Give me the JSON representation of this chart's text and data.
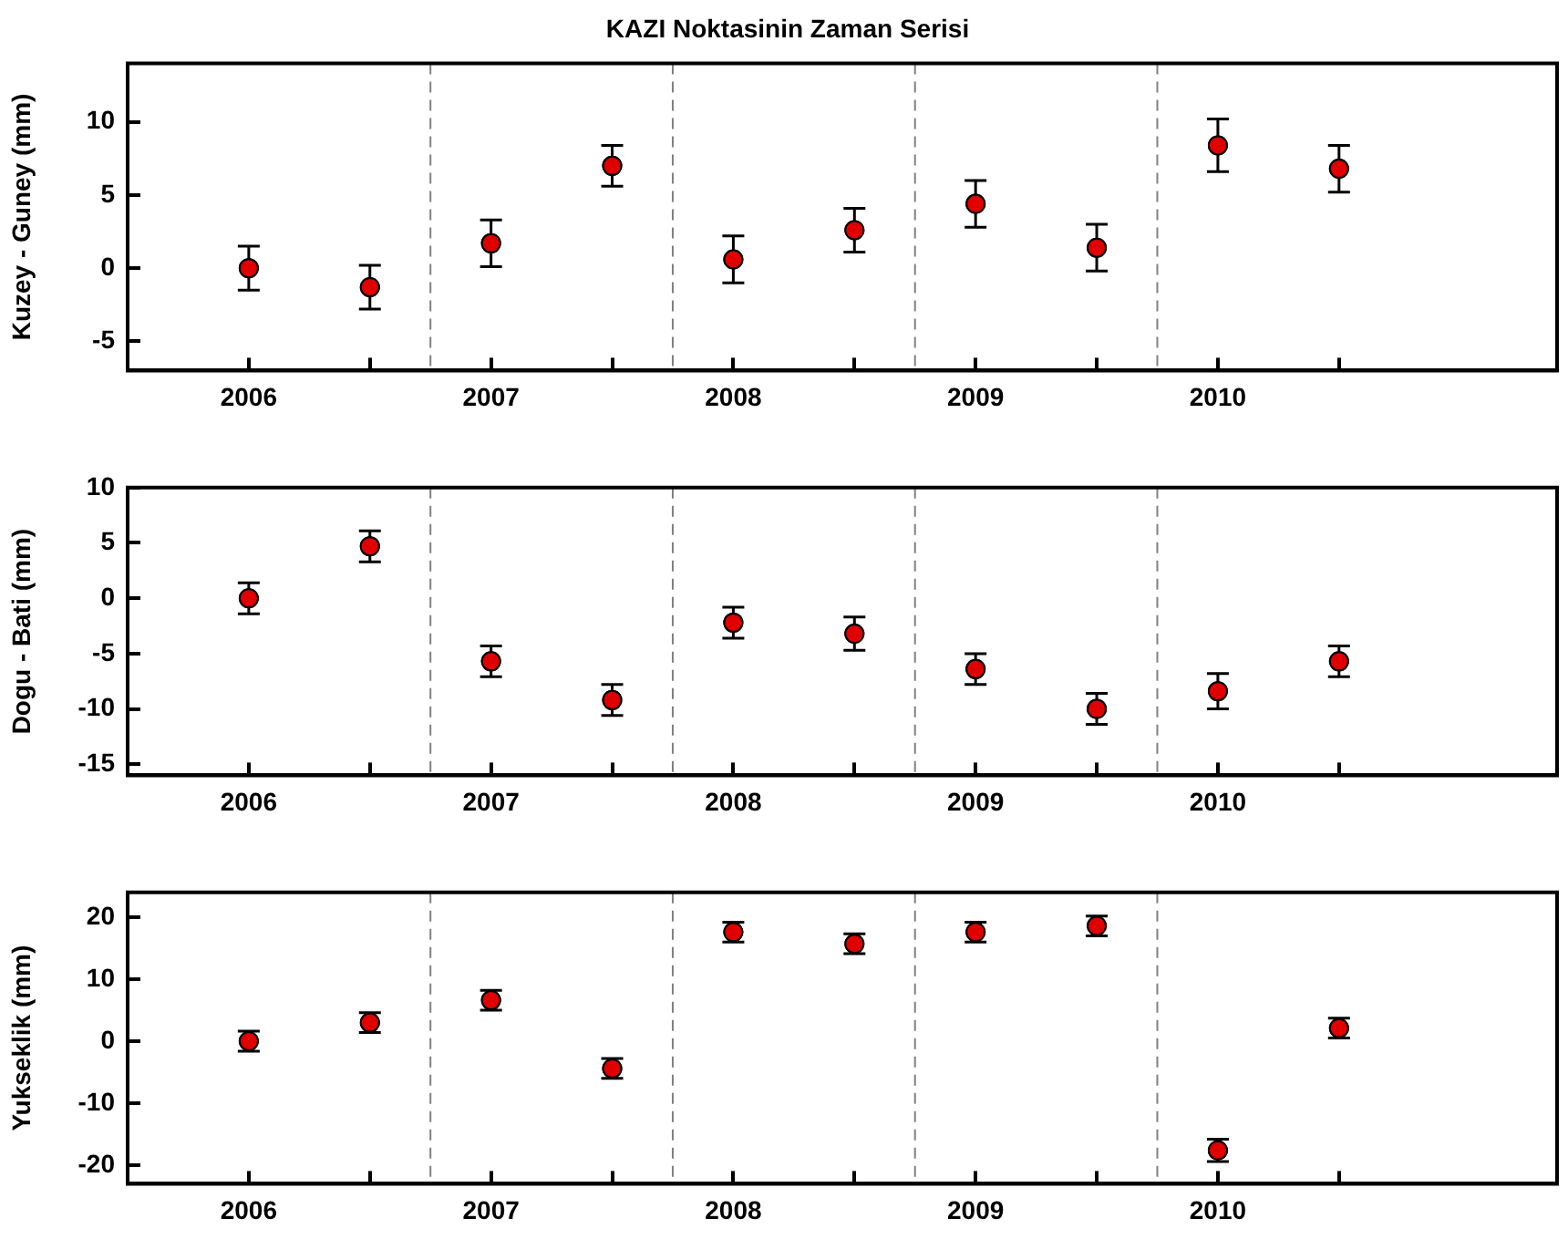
{
  "chart_data": [
    {
      "type": "scatter",
      "title": "KAZI Noktasinin Zaman Serisi",
      "ylabel": "Kuzey - Guney (mm)",
      "x": [
        2006,
        2006.5,
        2007,
        2007.5,
        2008,
        2008.5,
        2009,
        2009.5,
        2010,
        2010.5
      ],
      "series": [
        {
          "color": "#e00000",
          "values": [
            0,
            -1.3,
            1.7,
            7.0,
            0.6,
            2.6,
            4.4,
            1.4,
            8.4,
            6.8
          ],
          "errors": [
            1.5,
            1.5,
            1.6,
            1.4,
            1.6,
            1.5,
            1.6,
            1.6,
            1.8,
            1.6
          ]
        }
      ],
      "xlim": [
        2005.5,
        2011.4
      ],
      "xticks": [
        2006,
        {
          "value": 2006.5,
          "label": null
        },
        2007,
        {
          "value": 2007.5,
          "label": null
        },
        2008,
        {
          "value": 2008.5,
          "label": null
        },
        2009,
        {
          "value": 2009.5,
          "label": null
        },
        2010,
        {
          "value": 2010.5,
          "label": null
        }
      ],
      "ylim": [
        -7,
        14
      ],
      "yticks": [
        -5,
        0,
        5,
        10
      ],
      "ref_lines": [
        {
          "axis": "x",
          "value": 2006.75,
          "color": "#808080",
          "line_style": "dashed"
        },
        {
          "axis": "x",
          "value": 2007.75,
          "color": "#808080",
          "line_style": "dashed"
        },
        {
          "axis": "x",
          "value": 2008.75,
          "color": "#808080",
          "line_style": "dashed"
        },
        {
          "axis": "x",
          "value": 2009.75,
          "color": "#808080",
          "line_style": "dashed"
        }
      ],
      "marker": "circle",
      "grid": false,
      "legend": false
    },
    {
      "type": "scatter",
      "ylabel": "Dogu - Bati (mm)",
      "x": [
        2006,
        2006.5,
        2007,
        2007.5,
        2008,
        2008.5,
        2009,
        2009.5,
        2010,
        2010.5
      ],
      "series": [
        {
          "color": "#e00000",
          "values": [
            0,
            4.7,
            -5.7,
            -9.2,
            -2.2,
            -3.2,
            -6.4,
            -10.0,
            -8.4,
            -5.7
          ],
          "errors": [
            1.4,
            1.4,
            1.4,
            1.4,
            1.4,
            1.5,
            1.4,
            1.4,
            1.6,
            1.4
          ]
        }
      ],
      "xlim": [
        2005.5,
        2011.4
      ],
      "xticks": [
        2006,
        {
          "value": 2006.5,
          "label": null
        },
        2007,
        {
          "value": 2007.5,
          "label": null
        },
        2008,
        {
          "value": 2008.5,
          "label": null
        },
        2009,
        {
          "value": 2009.5,
          "label": null
        },
        2010,
        {
          "value": 2010.5,
          "label": null
        }
      ],
      "ylim": [
        -16,
        10
      ],
      "yticks": [
        -15,
        -10,
        -5,
        0,
        5,
        10
      ],
      "ref_lines": [
        {
          "axis": "x",
          "value": 2006.75,
          "color": "#808080",
          "line_style": "dashed"
        },
        {
          "axis": "x",
          "value": 2007.75,
          "color": "#808080",
          "line_style": "dashed"
        },
        {
          "axis": "x",
          "value": 2008.75,
          "color": "#808080",
          "line_style": "dashed"
        },
        {
          "axis": "x",
          "value": 2009.75,
          "color": "#808080",
          "line_style": "dashed"
        }
      ],
      "marker": "circle",
      "grid": false,
      "legend": false
    },
    {
      "type": "scatter",
      "ylabel": "Yukseklik (mm)",
      "x": [
        2006,
        2006.5,
        2007,
        2007.5,
        2008,
        2008.5,
        2009,
        2009.5,
        2010,
        2010.5
      ],
      "series": [
        {
          "color": "#e00000",
          "values": [
            0,
            3.0,
            6.6,
            -4.4,
            17.6,
            15.7,
            17.6,
            18.6,
            -17.6,
            2.1
          ],
          "errors": [
            1.6,
            1.6,
            1.6,
            1.6,
            1.6,
            1.6,
            1.6,
            1.6,
            1.8,
            1.6
          ]
        }
      ],
      "xlim": [
        2005.5,
        2011.4
      ],
      "xticks": [
        2006,
        {
          "value": 2006.5,
          "label": null
        },
        2007,
        {
          "value": 2007.5,
          "label": null
        },
        2008,
        {
          "value": 2008.5,
          "label": null
        },
        2009,
        {
          "value": 2009.5,
          "label": null
        },
        2010,
        {
          "value": 2010.5,
          "label": null
        }
      ],
      "ylim": [
        -23,
        24
      ],
      "yticks": [
        -20,
        -10,
        0,
        10,
        20
      ],
      "ref_lines": [
        {
          "axis": "x",
          "value": 2006.75,
          "color": "#808080",
          "line_style": "dashed"
        },
        {
          "axis": "x",
          "value": 2007.75,
          "color": "#808080",
          "line_style": "dashed"
        },
        {
          "axis": "x",
          "value": 2008.75,
          "color": "#808080",
          "line_style": "dashed"
        },
        {
          "axis": "x",
          "value": 2009.75,
          "color": "#808080",
          "line_style": "dashed"
        }
      ],
      "marker": "circle",
      "grid": false,
      "legend": false
    }
  ]
}
